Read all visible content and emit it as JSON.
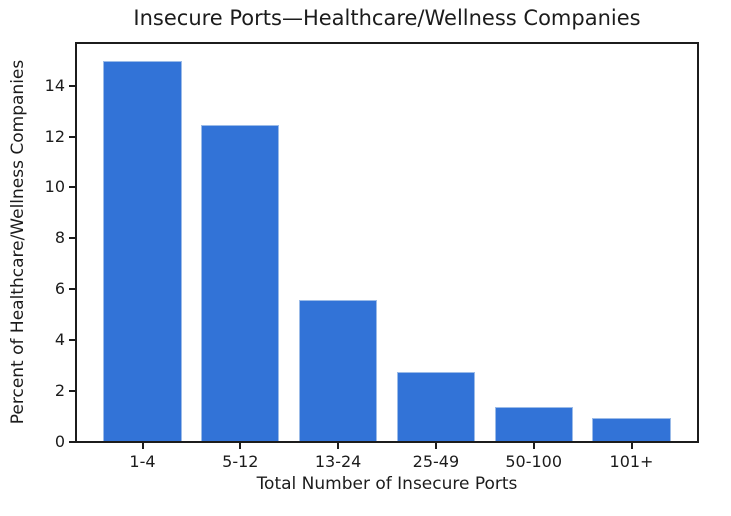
{
  "chart_data": {
    "type": "bar",
    "title": "Insecure Ports—Healthcare/Wellness Companies",
    "xlabel": "Total Number of Insecure Ports",
    "ylabel": "Percent of Healthcare/Wellness Companies",
    "categories": [
      "1-4",
      "5-12",
      "13-24",
      "25-49",
      "50-100",
      "101+"
    ],
    "values": [
      15.0,
      12.5,
      5.6,
      2.8,
      1.4,
      1.0
    ],
    "ylim": [
      0,
      15.75
    ],
    "yticks": [
      0,
      2,
      4,
      6,
      8,
      10,
      12,
      14
    ],
    "grid": false,
    "legend": null,
    "bar_color": "#3273d7",
    "bar_edge_color": "#9bbbe8",
    "axis_color": "#1c1c1c",
    "text_color": "#1c1c1c"
  }
}
